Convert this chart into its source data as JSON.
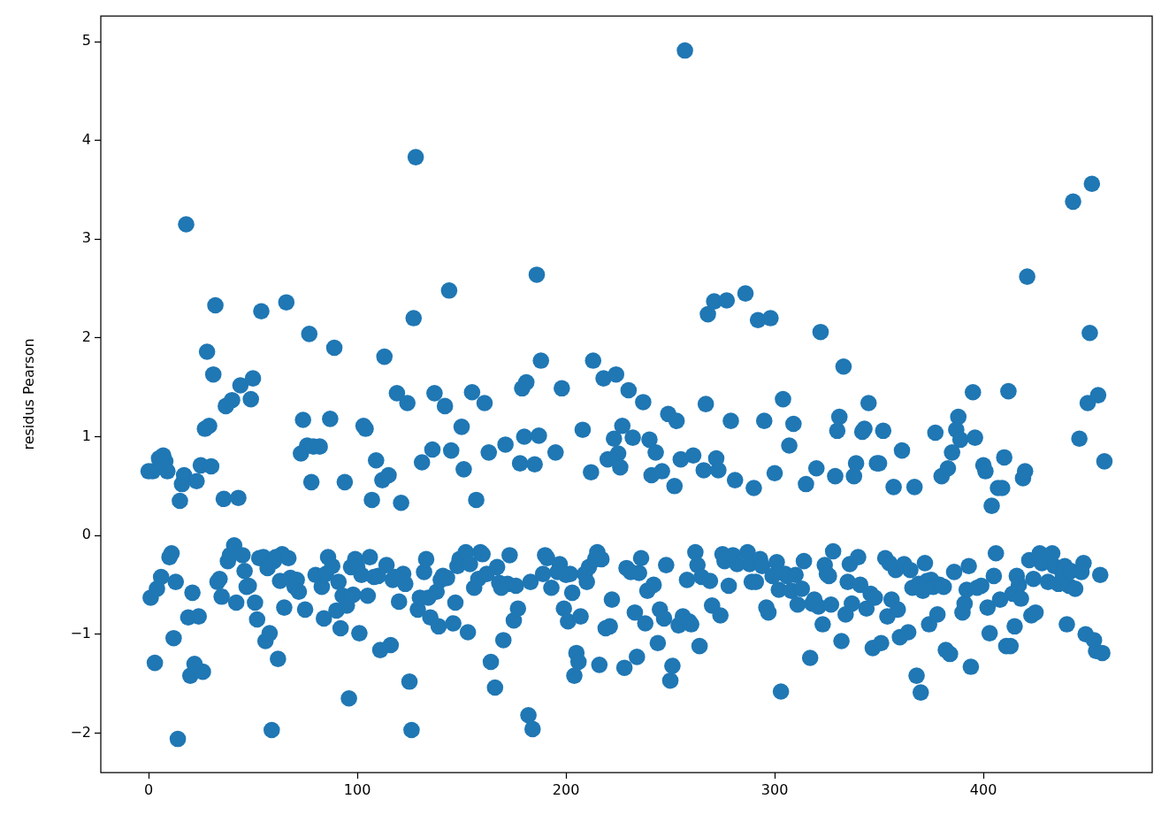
{
  "chart_data": {
    "type": "scatter",
    "ylabel": "residus Pearson",
    "color": "#1f77b4",
    "marker": "circle",
    "grid": false,
    "xlim": [
      -22.9,
      480.9
    ],
    "xticks": [
      0,
      100,
      200,
      300,
      400
    ],
    "ylim": [
      -2.4,
      5.26
    ],
    "yticks": [
      {
        "value": -2,
        "label": "−2"
      },
      {
        "value": -1,
        "label": "−1"
      },
      0,
      1,
      2,
      3,
      4,
      5
    ],
    "x": [
      0,
      1,
      2,
      3,
      4,
      5,
      6,
      7,
      8,
      9,
      10,
      11,
      12,
      13,
      14,
      15,
      16,
      17,
      18,
      19,
      20,
      21,
      22,
      23,
      24,
      25,
      26,
      27,
      28,
      29,
      30,
      31,
      32,
      33,
      34,
      35,
      36,
      37,
      38,
      39,
      40,
      41,
      42,
      43,
      44,
      45,
      46,
      47,
      48,
      49,
      50,
      51,
      52,
      53,
      54,
      55,
      56,
      57,
      58,
      59,
      60,
      61,
      62,
      63,
      64,
      65,
      66,
      67,
      68,
      69,
      70,
      71,
      72,
      73,
      74,
      75,
      76,
      77,
      78,
      79,
      80,
      81,
      82,
      83,
      84,
      85,
      86,
      87,
      88,
      89,
      90,
      91,
      92,
      93,
      94,
      95,
      96,
      97,
      98,
      99,
      100,
      101,
      102,
      103,
      104,
      105,
      106,
      107,
      108,
      109,
      110,
      111,
      112,
      113,
      114,
      115,
      116,
      117,
      118,
      119,
      120,
      121,
      122,
      123,
      124,
      125,
      126,
      127,
      128,
      129,
      130,
      131,
      132,
      133,
      134,
      135,
      136,
      137,
      138,
      139,
      140,
      141,
      142,
      143,
      144,
      145,
      146,
      147,
      148,
      149,
      150,
      151,
      152,
      153,
      154,
      155,
      156,
      157,
      158,
      159,
      160,
      161,
      162,
      163,
      164,
      165,
      166,
      167,
      168,
      169,
      170,
      171,
      172,
      173,
      174,
      175,
      176,
      177,
      178,
      179,
      180,
      181,
      182,
      183,
      184,
      185,
      186,
      187,
      188,
      189,
      190,
      191,
      192,
      193,
      194,
      195,
      196,
      197,
      198,
      199,
      200,
      201,
      202,
      203,
      204,
      205,
      206,
      207,
      208,
      209,
      210,
      211,
      212,
      213,
      214,
      215,
      216,
      217,
      218,
      219,
      220,
      221,
      222,
      223,
      224,
      225,
      226,
      227,
      228,
      229,
      230,
      231,
      232,
      233,
      234,
      235,
      236,
      237,
      238,
      239,
      240,
      241,
      242,
      243,
      244,
      245,
      246,
      247,
      248,
      249,
      250,
      251,
      252,
      253,
      254,
      255,
      256,
      257,
      258,
      259,
      260,
      261,
      262,
      263,
      264,
      265,
      266,
      267,
      268,
      269,
      270,
      271,
      272,
      273,
      274,
      275,
      276,
      277,
      278,
      279,
      280,
      281,
      282,
      283,
      284,
      285,
      286,
      287,
      288,
      289,
      290,
      291,
      292,
      293,
      294,
      295,
      296,
      297,
      298,
      299,
      300,
      301,
      302,
      303,
      304,
      305,
      306,
      307,
      308,
      309,
      310,
      311,
      312,
      313,
      314,
      315,
      316,
      317,
      318,
      319,
      320,
      321,
      322,
      323,
      324,
      325,
      326,
      327,
      328,
      329,
      330,
      331,
      332,
      333,
      334,
      335,
      336,
      337,
      338,
      339,
      340,
      341,
      342,
      343,
      344,
      345,
      346,
      347,
      348,
      349,
      350,
      351,
      352,
      353,
      354,
      355,
      356,
      357,
      358,
      359,
      360,
      361,
      362,
      363,
      364,
      365,
      366,
      367,
      368,
      369,
      370,
      371,
      372,
      373,
      374,
      375,
      376,
      377,
      378,
      379,
      380,
      381,
      382,
      383,
      384,
      385,
      386,
      387,
      388,
      389,
      390,
      391,
      392,
      393,
      394,
      395,
      396,
      397,
      398,
      399,
      400,
      401,
      402,
      403,
      404,
      405,
      406,
      407,
      408,
      409,
      410,
      411,
      412,
      413,
      414,
      415,
      416,
      417,
      418,
      419,
      420,
      421,
      422,
      423,
      424,
      425,
      426,
      427,
      428,
      429,
      430,
      431,
      432,
      433,
      434,
      435,
      436,
      437,
      438,
      439,
      440,
      441,
      442,
      443,
      444,
      445,
      446,
      447,
      448,
      449,
      450,
      451,
      452,
      453,
      454,
      455,
      456,
      457,
      458
    ],
    "values": [
      0.65,
      -0.63,
      0.65,
      -1.29,
      -0.54,
      0.78,
      -0.42,
      0.81,
      0.75,
      0.65,
      -0.22,
      -0.18,
      -1.04,
      -0.47,
      -2.06,
      0.35,
      0.52,
      0.61,
      3.15,
      -0.83,
      -1.42,
      -0.58,
      -1.3,
      0.55,
      -0.82,
      0.71,
      -1.38,
      1.08,
      1.86,
      1.11,
      0.7,
      1.63,
      2.33,
      -0.47,
      -0.44,
      -0.62,
      0.37,
      1.31,
      -0.26,
      -0.2,
      1.37,
      -0.1,
      -0.68,
      0.38,
      1.52,
      -0.2,
      -0.36,
      -0.52,
      -0.51,
      1.38,
      1.59,
      -0.68,
      -0.85,
      -0.23,
      2.27,
      -0.22,
      -1.07,
      -0.33,
      -0.99,
      -1.97,
      -0.26,
      -0.22,
      -1.25,
      -0.46,
      -0.19,
      -0.73,
      2.36,
      -0.23,
      -0.43,
      null,
      -0.52,
      -0.45,
      -0.57,
      0.83,
      1.17,
      -0.75,
      0.91,
      2.04,
      0.54,
      0.9,
      -0.4,
      null,
      0.9,
      -0.52,
      -0.84,
      -0.39,
      -0.22,
      1.18,
      -0.31,
      1.9,
      -0.76,
      -0.47,
      -0.94,
      -0.61,
      0.54,
      -0.71,
      -1.65,
      -0.32,
      -0.6,
      -0.24,
      -0.32,
      -0.99,
      -0.4,
      1.11,
      1.08,
      -0.61,
      -0.22,
      0.36,
      -0.42,
      0.76,
      -0.41,
      -1.16,
      0.56,
      1.81,
      -0.3,
      0.61,
      -1.11,
      -0.45,
      -0.42,
      1.44,
      -0.67,
      0.33,
      -0.39,
      -0.49,
      1.34,
      -1.48,
      -1.97,
      2.2,
      3.83,
      -0.75,
      -0.63,
      0.74,
      -0.37,
      -0.24,
      -0.63,
      -0.83,
      0.87,
      1.44,
      -0.57,
      -0.92,
      -0.45,
      -0.41,
      1.31,
      -0.43,
      2.48,
      0.86,
      -0.89,
      -0.68,
      -0.31,
      -0.24,
      1.1,
      0.67,
      -0.17,
      -0.98,
      -0.29,
      1.45,
      -0.53,
      0.36,
      -0.44,
      -0.17,
      -0.19,
      1.34,
      -0.39,
      0.84,
      -1.28,
      null,
      -1.54,
      -0.32,
      -0.48,
      -0.53,
      -1.06,
      0.92,
      -0.49,
      -0.2,
      null,
      -0.86,
      -0.51,
      -0.74,
      0.73,
      1.49,
      1.0,
      1.55,
      -1.82,
      -0.47,
      -1.96,
      0.72,
      2.64,
      1.01,
      1.77,
      -0.39,
      -0.2,
      -0.23,
      null,
      -0.53,
      null,
      0.84,
      -0.37,
      -0.29,
      1.49,
      -0.74,
      -0.4,
      -0.87,
      -0.39,
      -0.58,
      -1.42,
      -1.19,
      -1.28,
      -0.82,
      1.07,
      -0.39,
      -0.47,
      -0.32,
      0.64,
      1.77,
      -0.24,
      -0.17,
      -1.31,
      -0.24,
      1.59,
      -0.94,
      0.77,
      -0.92,
      -0.65,
      0.98,
      1.63,
      0.83,
      0.69,
      1.11,
      -1.34,
      -0.33,
      1.47,
      -0.37,
      0.99,
      -0.78,
      -1.23,
      -0.38,
      -0.23,
      1.35,
      -0.89,
      -0.56,
      0.97,
      0.61,
      -0.5,
      0.84,
      -1.09,
      -0.75,
      0.65,
      -0.84,
      -0.3,
      1.23,
      -1.47,
      -1.32,
      0.5,
      1.16,
      -0.91,
      0.77,
      -0.82,
      4.91,
      -0.45,
      -0.87,
      -0.9,
      0.81,
      -0.17,
      -0.3,
      -1.12,
      -0.42,
      0.66,
      1.33,
      2.24,
      -0.46,
      -0.71,
      2.37,
      0.78,
      0.66,
      -0.81,
      -0.19,
      -0.26,
      2.38,
      -0.51,
      1.16,
      -0.2,
      0.56,
      -0.29,
      null,
      null,
      null,
      2.45,
      -0.17,
      -0.29,
      -0.47,
      0.48,
      -0.47,
      2.18,
      -0.24,
      -0.31,
      1.16,
      -0.73,
      -0.78,
      2.2,
      -0.41,
      0.63,
      -0.27,
      -0.55,
      -1.58,
      1.38,
      -0.39,
      -0.41,
      0.91,
      -0.56,
      1.13,
      -0.4,
      -0.7,
      null,
      -0.54,
      -0.26,
      0.52,
      null,
      -1.24,
      -0.69,
      -0.65,
      0.68,
      -0.72,
      2.06,
      -0.9,
      -0.3,
      -0.39,
      -0.41,
      -0.7,
      -0.16,
      0.6,
      1.06,
      1.2,
      -1.07,
      1.71,
      -0.8,
      -0.47,
      -0.29,
      -0.69,
      0.6,
      0.73,
      -0.22,
      -0.5,
      1.05,
      1.08,
      -0.74,
      1.34,
      -0.59,
      -1.14,
      -0.63,
      0.73,
      0.73,
      -1.09,
      1.06,
      -0.23,
      -0.82,
      -0.28,
      -0.65,
      0.49,
      -0.35,
      -0.75,
      -1.03,
      0.86,
      -0.29,
      null,
      -0.98,
      -0.35,
      -0.53,
      0.49,
      -1.42,
      -0.49,
      -1.59,
      -0.56,
      -0.28,
      -0.46,
      -0.9,
      -0.45,
      -0.52,
      1.04,
      -0.8,
      -0.5,
      0.6,
      -0.52,
      -1.16,
      0.68,
      -1.2,
      0.84,
      -0.37,
      1.07,
      1.2,
      0.97,
      -0.78,
      -0.69,
      -0.55,
      -0.31,
      -1.33,
      1.45,
      0.99,
      -0.53,
      null,
      -0.51,
      0.71,
      0.65,
      -0.73,
      -0.99,
      0.3,
      -0.41,
      -0.18,
      0.48,
      -0.65,
      0.48,
      0.79,
      -1.12,
      1.46,
      -1.12,
      -0.59,
      -0.92,
      -0.41,
      -0.5,
      -0.64,
      0.58,
      0.65,
      2.62,
      -0.25,
      -0.81,
      -0.44,
      -0.78,
      null,
      -0.18,
      -0.28,
      null,
      null,
      -0.47,
      null,
      -0.18,
      -0.31,
      null,
      -0.49,
      null,
      -0.39,
      -0.31,
      -0.9,
      -0.51,
      -0.36,
      3.38,
      -0.54,
      null,
      0.98,
      -0.37,
      -0.28,
      -1.0,
      1.34,
      2.05,
      3.56,
      -1.06,
      -1.17,
      1.42,
      -0.4,
      -1.19,
      0.75
    ]
  }
}
